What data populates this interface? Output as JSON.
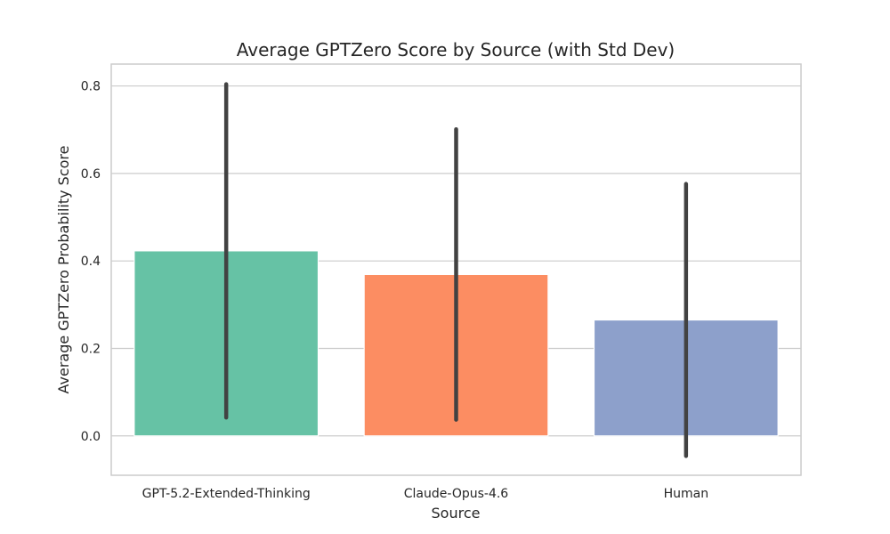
{
  "chart_data": {
    "type": "bar",
    "title": "Average GPTZero Score by Source (with Std Dev)",
    "xlabel": "Source",
    "ylabel": "Average GPTZero Probability Score",
    "categories": [
      "GPT-5.2-Extended-Thinking",
      "Claude-Opus-4.6",
      "Human"
    ],
    "values": [
      0.423,
      0.369,
      0.265
    ],
    "std": [
      0.381,
      0.332,
      0.311
    ],
    "colors": [
      "#66c2a5",
      "#fc8d62",
      "#8da0cb"
    ],
    "error_color": "#424242",
    "ylim": [
      -0.09,
      0.85
    ],
    "yticks": [
      0.0,
      0.2,
      0.4,
      0.6,
      0.8
    ],
    "ytick_labels": [
      "0.0",
      "0.2",
      "0.4",
      "0.6",
      "0.8"
    ],
    "grid": "horizontal"
  }
}
